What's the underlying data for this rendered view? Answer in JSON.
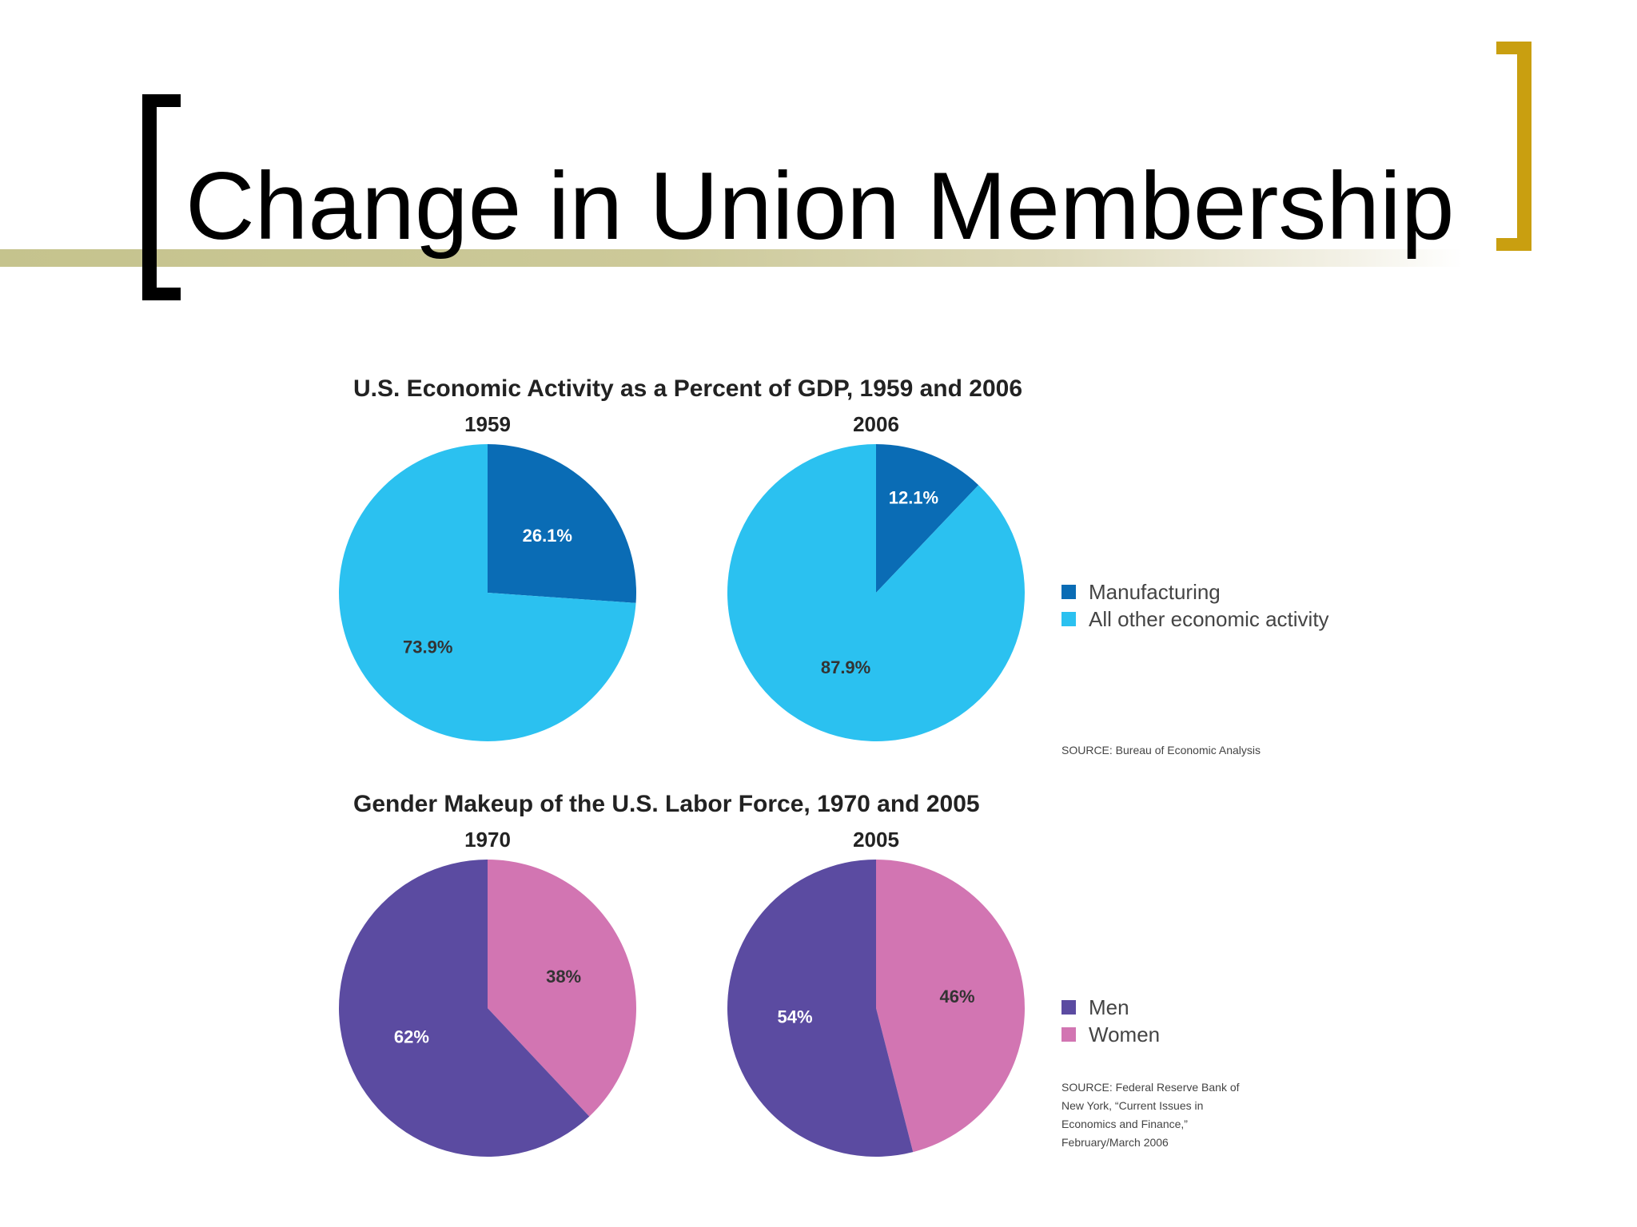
{
  "slide": {
    "title": "Change in Union Membership",
    "colors": {
      "rule": "#c5c38d",
      "left_bracket": "#000000",
      "right_bracket": "#c99f10"
    }
  },
  "chart_data": [
    {
      "type": "pie",
      "title": "U.S. Economic Activity as a Percent of GDP, 1959 and 2006",
      "pies": [
        {
          "label": "1959",
          "slices": [
            {
              "name": "Manufacturing",
              "value": 26.1,
              "label": "26.1%"
            },
            {
              "name": "All other economic activity",
              "value": 73.9,
              "label": "73.9%"
            }
          ]
        },
        {
          "label": "2006",
          "slices": [
            {
              "name": "Manufacturing",
              "value": 12.1,
              "label": "12.1%"
            },
            {
              "name": "All other economic activity",
              "value": 87.9,
              "label": "87.9%"
            }
          ]
        }
      ],
      "legend": [
        {
          "name": "Manufacturing",
          "color": "#0a6cb5"
        },
        {
          "name": "All other economic activity",
          "color": "#2bc1f0"
        }
      ],
      "legend_position": "right",
      "source": "SOURCE: Bureau of Economic Analysis",
      "label_colors": [
        "#ffffff",
        "#333333"
      ]
    },
    {
      "type": "pie",
      "title": "Gender Makeup of the U.S. Labor Force, 1970 and 2005",
      "pies": [
        {
          "label": "1970",
          "slices": [
            {
              "name": "Women",
              "value": 38,
              "label": "38%"
            },
            {
              "name": "Men",
              "value": 62,
              "label": "62%"
            }
          ]
        },
        {
          "label": "2005",
          "slices": [
            {
              "name": "Women",
              "value": 46,
              "label": "46%"
            },
            {
              "name": "Men",
              "value": 54,
              "label": "54%"
            }
          ]
        }
      ],
      "legend": [
        {
          "name": "Men",
          "color": "#5b4ba1"
        },
        {
          "name": "Women",
          "color": "#d275b2"
        }
      ],
      "legend_position": "right",
      "source": "SOURCE: Federal Reserve Bank of New York, “Current Issues in Economics and Finance,” February/March 2006",
      "label_colors": [
        "#333333",
        "#ffffff"
      ]
    }
  ]
}
